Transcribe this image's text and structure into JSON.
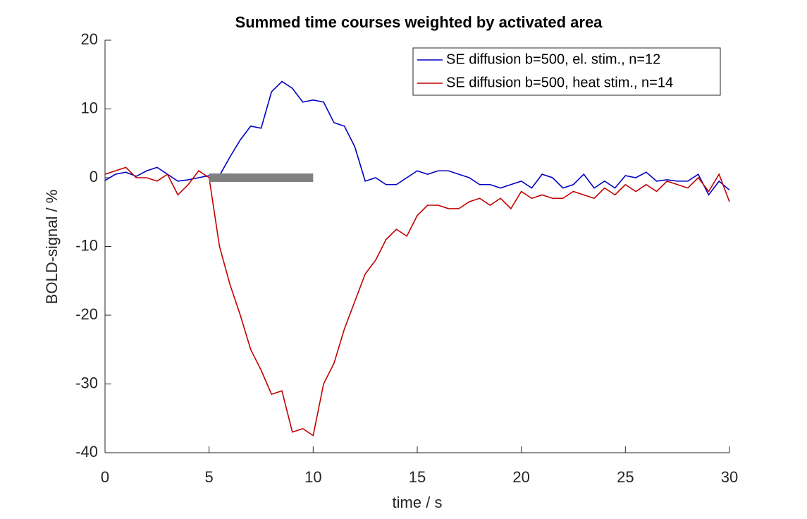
{
  "chart_data": {
    "type": "line",
    "title": "Summed time courses weighted by activated area",
    "x_label": "time / s",
    "y_label": "BOLD-signal / %",
    "x": [
      0,
      0.5,
      1,
      1.5,
      2,
      2.5,
      3,
      3.5,
      4,
      4.5,
      5,
      5.5,
      6,
      6.5,
      7,
      7.5,
      8,
      8.5,
      9,
      9.5,
      10,
      10.5,
      11,
      11.5,
      12,
      12.5,
      13,
      13.5,
      14,
      14.5,
      15,
      15.5,
      16,
      16.5,
      17,
      17.5,
      18,
      18.5,
      19,
      19.5,
      20,
      20.5,
      21,
      21.5,
      22,
      22.5,
      23,
      23.5,
      24,
      24.5,
      25,
      25.5,
      26,
      26.5,
      27,
      27.5,
      28,
      28.5,
      29,
      29.5,
      30
    ],
    "series": [
      {
        "name": "SE diffusion b=500, el. stim., n=12",
        "color": "#0000c0",
        "values": [
          -0.4,
          0.5,
          0.8,
          0.2,
          1,
          1.5,
          0.5,
          -0.5,
          -0.3,
          0,
          0.3,
          0.3,
          3,
          5.5,
          7.5,
          7.2,
          12.5,
          14,
          13,
          11,
          11.3,
          11,
          8,
          7.5,
          4.5,
          -0.5,
          0,
          -1,
          -1,
          0,
          1,
          0.5,
          1,
          1,
          0.5,
          0,
          -1,
          -1,
          -1.5,
          -1,
          -0.5,
          -1.5,
          0.5,
          0,
          -1.5,
          -1,
          0.5,
          -1.5,
          -0.5,
          -1.5,
          0.3,
          0,
          0.8,
          -0.5,
          -0.3,
          -0.5,
          -0.5,
          0.5,
          -2.5,
          -0.5,
          -1.8
        ]
      },
      {
        "name": "SE diffusion b=500, heat stim., n=14",
        "color": "#c00000",
        "values": [
          0.5,
          1,
          1.5,
          0,
          0,
          -0.5,
          0.5,
          -2.5,
          -1,
          1,
          0,
          -10,
          -15.5,
          -20,
          -25,
          -28,
          -31.5,
          -31,
          -37,
          -36.5,
          -37.5,
          -30,
          -27,
          -22,
          -18,
          -14,
          -12,
          -9,
          -7.5,
          -8.5,
          -5.5,
          -4,
          -4,
          -4.5,
          -4.5,
          -3.5,
          -3,
          -4,
          -3,
          -4.5,
          -2,
          -3,
          -2.5,
          -3,
          -3,
          -2,
          -2.5,
          -3,
          -1.5,
          -2.5,
          -1,
          -2,
          -1,
          -2,
          -0.5,
          -1,
          -1.5,
          0,
          -2,
          0.5,
          -3.5
        ]
      }
    ],
    "stimulus_bar": {
      "xlim": [
        5,
        10
      ],
      "y": 0,
      "color": "#808080"
    },
    "xlim": [
      0,
      30
    ],
    "xticks": [
      0,
      5,
      10,
      15,
      20,
      25,
      30
    ],
    "ylim": [
      -40,
      20
    ],
    "yticks": [
      -40,
      -30,
      -20,
      -10,
      0,
      10,
      20
    ],
    "legend": "upper right"
  }
}
